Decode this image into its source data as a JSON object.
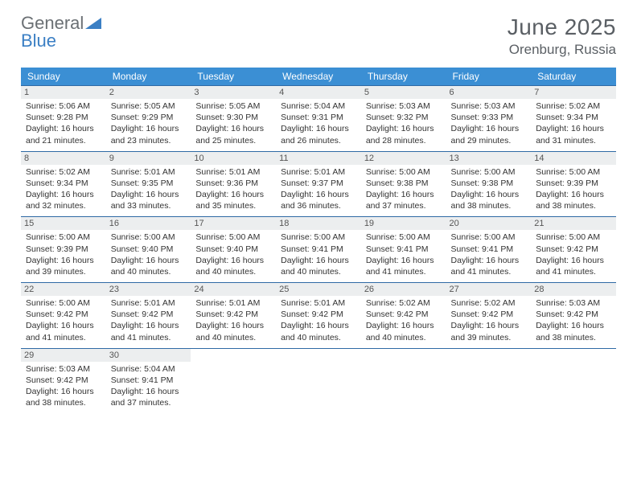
{
  "logo": {
    "word1": "General",
    "word2": "Blue"
  },
  "title": "June 2025",
  "location": "Orenburg, Russia",
  "colors": {
    "header_bg": "#3b8fd4",
    "header_text": "#ffffff",
    "daynum_bg": "#eceeef",
    "row_border": "#2f6aa5",
    "logo_gray": "#6b7074",
    "logo_blue": "#3b7fc4",
    "title_color": "#5a5f64"
  },
  "typography": {
    "title_fontsize": 28,
    "location_fontsize": 17,
    "header_fontsize": 12,
    "cell_fontsize": 10.5
  },
  "daynames": [
    "Sunday",
    "Monday",
    "Tuesday",
    "Wednesday",
    "Thursday",
    "Friday",
    "Saturday"
  ],
  "weeks": [
    [
      {
        "n": "1",
        "sr": "Sunrise: 5:06 AM",
        "ss": "Sunset: 9:28 PM",
        "d1": "Daylight: 16 hours",
        "d2": "and 21 minutes."
      },
      {
        "n": "2",
        "sr": "Sunrise: 5:05 AM",
        "ss": "Sunset: 9:29 PM",
        "d1": "Daylight: 16 hours",
        "d2": "and 23 minutes."
      },
      {
        "n": "3",
        "sr": "Sunrise: 5:05 AM",
        "ss": "Sunset: 9:30 PM",
        "d1": "Daylight: 16 hours",
        "d2": "and 25 minutes."
      },
      {
        "n": "4",
        "sr": "Sunrise: 5:04 AM",
        "ss": "Sunset: 9:31 PM",
        "d1": "Daylight: 16 hours",
        "d2": "and 26 minutes."
      },
      {
        "n": "5",
        "sr": "Sunrise: 5:03 AM",
        "ss": "Sunset: 9:32 PM",
        "d1": "Daylight: 16 hours",
        "d2": "and 28 minutes."
      },
      {
        "n": "6",
        "sr": "Sunrise: 5:03 AM",
        "ss": "Sunset: 9:33 PM",
        "d1": "Daylight: 16 hours",
        "d2": "and 29 minutes."
      },
      {
        "n": "7",
        "sr": "Sunrise: 5:02 AM",
        "ss": "Sunset: 9:34 PM",
        "d1": "Daylight: 16 hours",
        "d2": "and 31 minutes."
      }
    ],
    [
      {
        "n": "8",
        "sr": "Sunrise: 5:02 AM",
        "ss": "Sunset: 9:34 PM",
        "d1": "Daylight: 16 hours",
        "d2": "and 32 minutes."
      },
      {
        "n": "9",
        "sr": "Sunrise: 5:01 AM",
        "ss": "Sunset: 9:35 PM",
        "d1": "Daylight: 16 hours",
        "d2": "and 33 minutes."
      },
      {
        "n": "10",
        "sr": "Sunrise: 5:01 AM",
        "ss": "Sunset: 9:36 PM",
        "d1": "Daylight: 16 hours",
        "d2": "and 35 minutes."
      },
      {
        "n": "11",
        "sr": "Sunrise: 5:01 AM",
        "ss": "Sunset: 9:37 PM",
        "d1": "Daylight: 16 hours",
        "d2": "and 36 minutes."
      },
      {
        "n": "12",
        "sr": "Sunrise: 5:00 AM",
        "ss": "Sunset: 9:38 PM",
        "d1": "Daylight: 16 hours",
        "d2": "and 37 minutes."
      },
      {
        "n": "13",
        "sr": "Sunrise: 5:00 AM",
        "ss": "Sunset: 9:38 PM",
        "d1": "Daylight: 16 hours",
        "d2": "and 38 minutes."
      },
      {
        "n": "14",
        "sr": "Sunrise: 5:00 AM",
        "ss": "Sunset: 9:39 PM",
        "d1": "Daylight: 16 hours",
        "d2": "and 38 minutes."
      }
    ],
    [
      {
        "n": "15",
        "sr": "Sunrise: 5:00 AM",
        "ss": "Sunset: 9:39 PM",
        "d1": "Daylight: 16 hours",
        "d2": "and 39 minutes."
      },
      {
        "n": "16",
        "sr": "Sunrise: 5:00 AM",
        "ss": "Sunset: 9:40 PM",
        "d1": "Daylight: 16 hours",
        "d2": "and 40 minutes."
      },
      {
        "n": "17",
        "sr": "Sunrise: 5:00 AM",
        "ss": "Sunset: 9:40 PM",
        "d1": "Daylight: 16 hours",
        "d2": "and 40 minutes."
      },
      {
        "n": "18",
        "sr": "Sunrise: 5:00 AM",
        "ss": "Sunset: 9:41 PM",
        "d1": "Daylight: 16 hours",
        "d2": "and 40 minutes."
      },
      {
        "n": "19",
        "sr": "Sunrise: 5:00 AM",
        "ss": "Sunset: 9:41 PM",
        "d1": "Daylight: 16 hours",
        "d2": "and 41 minutes."
      },
      {
        "n": "20",
        "sr": "Sunrise: 5:00 AM",
        "ss": "Sunset: 9:41 PM",
        "d1": "Daylight: 16 hours",
        "d2": "and 41 minutes."
      },
      {
        "n": "21",
        "sr": "Sunrise: 5:00 AM",
        "ss": "Sunset: 9:42 PM",
        "d1": "Daylight: 16 hours",
        "d2": "and 41 minutes."
      }
    ],
    [
      {
        "n": "22",
        "sr": "Sunrise: 5:00 AM",
        "ss": "Sunset: 9:42 PM",
        "d1": "Daylight: 16 hours",
        "d2": "and 41 minutes."
      },
      {
        "n": "23",
        "sr": "Sunrise: 5:01 AM",
        "ss": "Sunset: 9:42 PM",
        "d1": "Daylight: 16 hours",
        "d2": "and 41 minutes."
      },
      {
        "n": "24",
        "sr": "Sunrise: 5:01 AM",
        "ss": "Sunset: 9:42 PM",
        "d1": "Daylight: 16 hours",
        "d2": "and 40 minutes."
      },
      {
        "n": "25",
        "sr": "Sunrise: 5:01 AM",
        "ss": "Sunset: 9:42 PM",
        "d1": "Daylight: 16 hours",
        "d2": "and 40 minutes."
      },
      {
        "n": "26",
        "sr": "Sunrise: 5:02 AM",
        "ss": "Sunset: 9:42 PM",
        "d1": "Daylight: 16 hours",
        "d2": "and 40 minutes."
      },
      {
        "n": "27",
        "sr": "Sunrise: 5:02 AM",
        "ss": "Sunset: 9:42 PM",
        "d1": "Daylight: 16 hours",
        "d2": "and 39 minutes."
      },
      {
        "n": "28",
        "sr": "Sunrise: 5:03 AM",
        "ss": "Sunset: 9:42 PM",
        "d1": "Daylight: 16 hours",
        "d2": "and 38 minutes."
      }
    ],
    [
      {
        "n": "29",
        "sr": "Sunrise: 5:03 AM",
        "ss": "Sunset: 9:42 PM",
        "d1": "Daylight: 16 hours",
        "d2": "and 38 minutes."
      },
      {
        "n": "30",
        "sr": "Sunrise: 5:04 AM",
        "ss": "Sunset: 9:41 PM",
        "d1": "Daylight: 16 hours",
        "d2": "and 37 minutes."
      },
      {
        "empty": true
      },
      {
        "empty": true
      },
      {
        "empty": true
      },
      {
        "empty": true
      },
      {
        "empty": true
      }
    ]
  ]
}
